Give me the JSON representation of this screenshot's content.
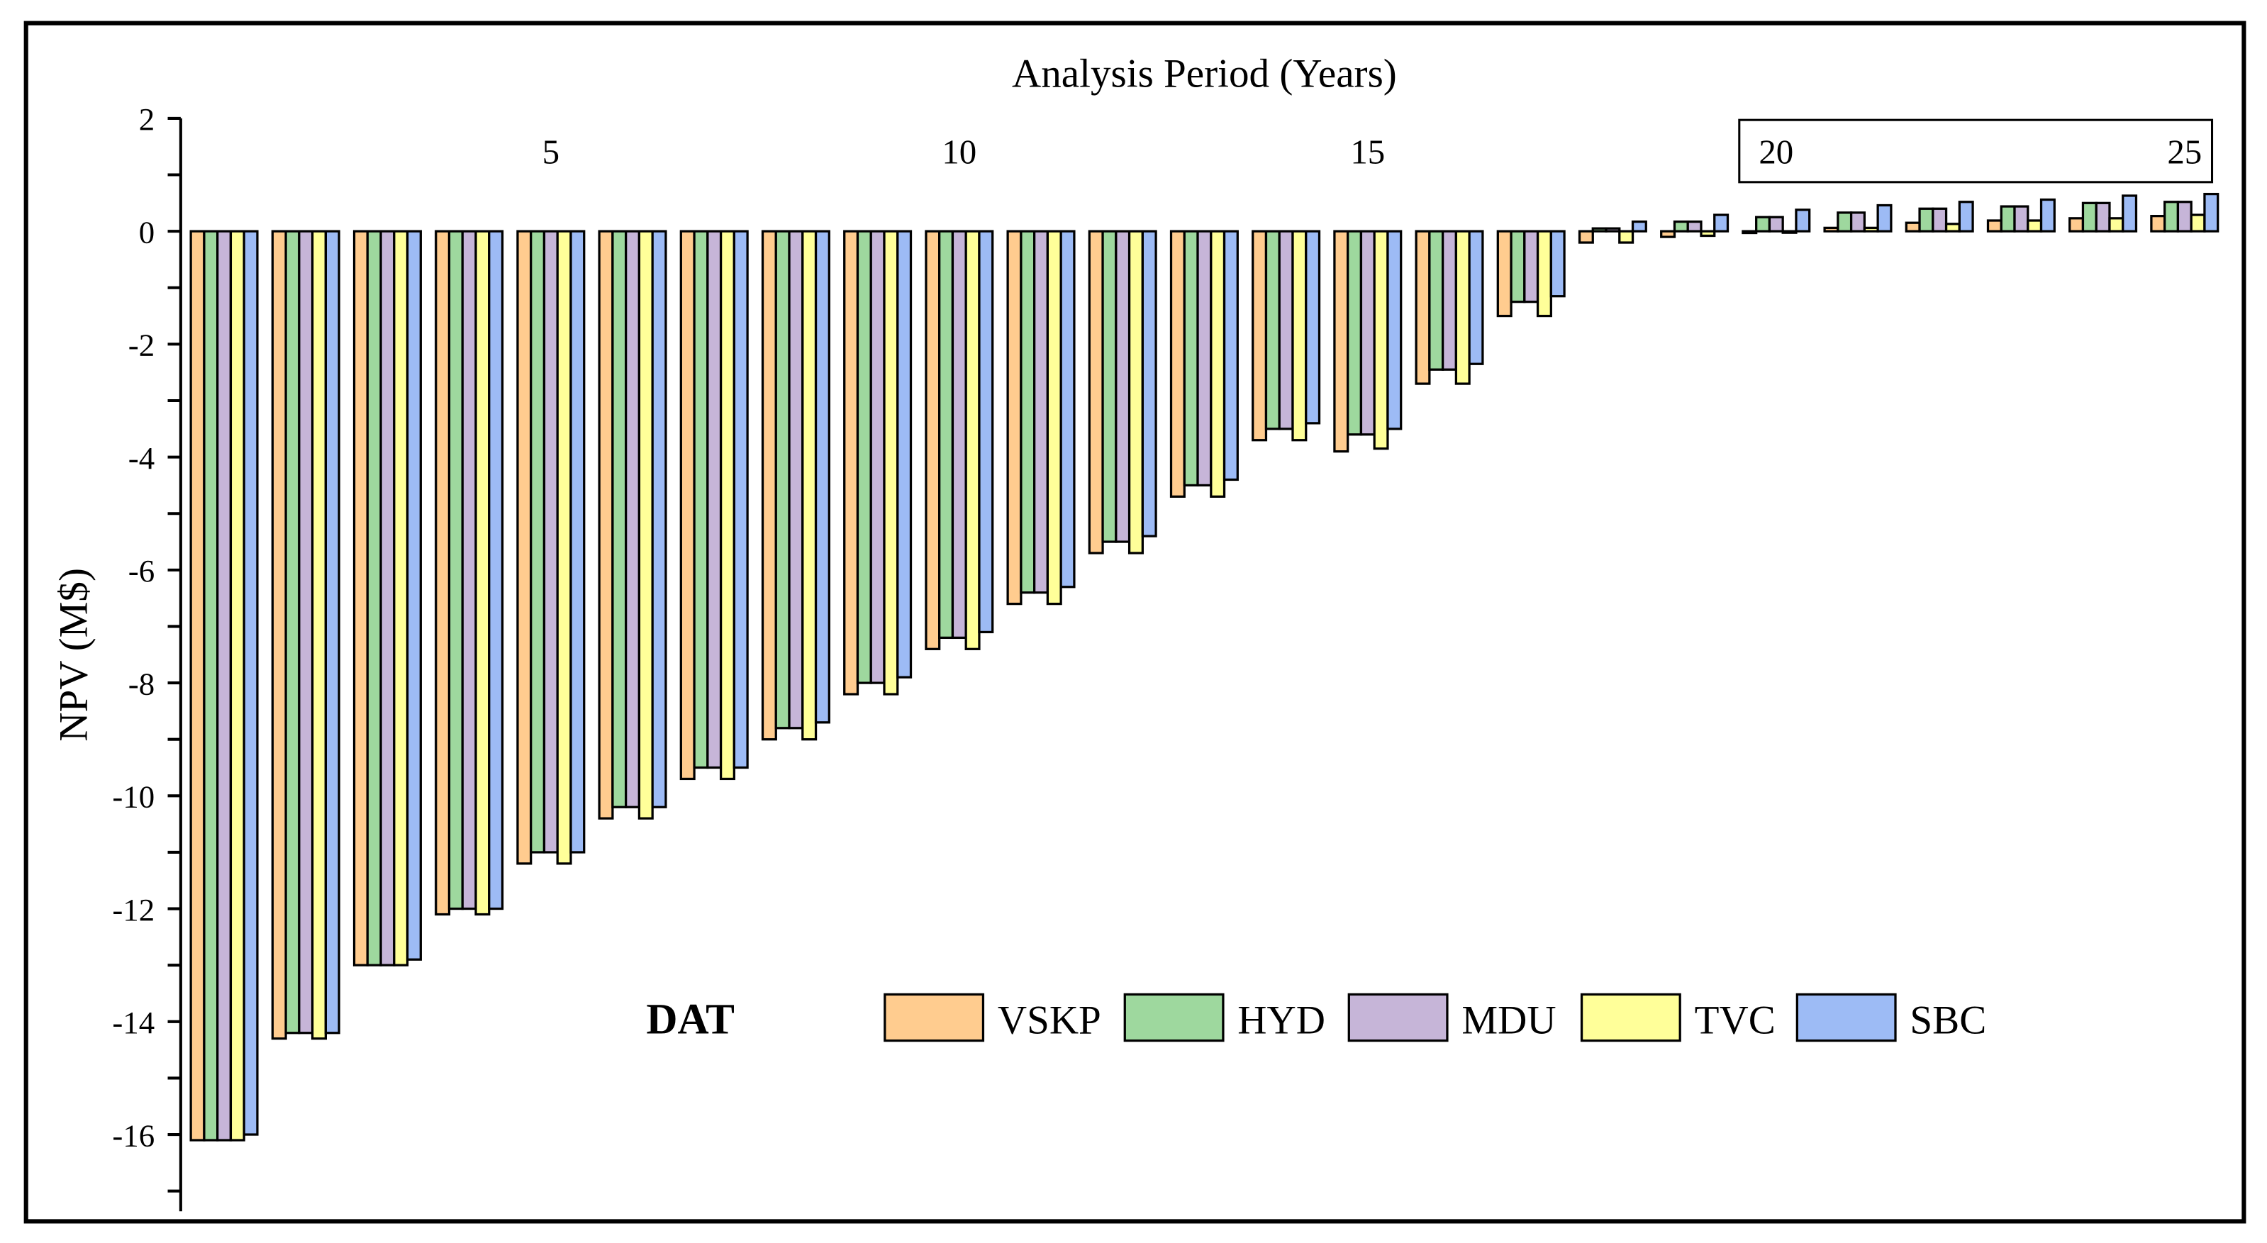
{
  "chart_data": {
    "type": "bar",
    "title": "",
    "xlabel": "Analysis Period (Years)",
    "ylabel": "NPV (M$)",
    "ylim": [
      -17,
      2
    ],
    "yticks": [
      2,
      0,
      -2,
      -4,
      -6,
      -8,
      -10,
      -12,
      -14,
      -16
    ],
    "xtick_labels": [
      "5",
      "10",
      "15",
      "20",
      "25"
    ],
    "xticks": [
      5,
      10,
      15,
      20,
      25
    ],
    "categories": [
      1,
      2,
      3,
      4,
      5,
      6,
      7,
      8,
      9,
      10,
      11,
      12,
      13,
      14,
      15,
      16,
      17,
      18,
      19,
      20,
      21,
      22,
      23,
      24,
      25
    ],
    "legend": {
      "title": "DAT",
      "placement": "bottom-center"
    },
    "grid": false,
    "series": [
      {
        "name": "VSKP",
        "color": "#FFCC8F",
        "values": [
          -16.1,
          -14.3,
          -13.0,
          -12.1,
          -11.2,
          -10.4,
          -9.7,
          -9.0,
          -8.2,
          -7.4,
          -6.6,
          -5.7,
          -4.7,
          -3.7,
          -3.9,
          -2.7,
          -1.5,
          -0.2,
          -0.1,
          -0.03,
          0.06,
          0.15,
          0.19,
          0.23,
          0.27
        ]
      },
      {
        "name": "HYD",
        "color": "#9ED89E",
        "values": [
          -16.1,
          -14.2,
          -13.0,
          -12.0,
          -11.0,
          -10.2,
          -9.5,
          -8.8,
          -8.0,
          -7.2,
          -6.4,
          -5.5,
          -4.5,
          -3.5,
          -3.6,
          -2.45,
          -1.25,
          0.05,
          0.17,
          0.25,
          0.33,
          0.4,
          0.44,
          0.5,
          0.52
        ]
      },
      {
        "name": "MDU",
        "color": "#C6B5D8",
        "values": [
          -16.1,
          -14.2,
          -13.0,
          -12.0,
          -11.0,
          -10.2,
          -9.5,
          -8.8,
          -8.0,
          -7.2,
          -6.4,
          -5.5,
          -4.5,
          -3.5,
          -3.6,
          -2.45,
          -1.25,
          0.05,
          0.17,
          0.25,
          0.33,
          0.4,
          0.44,
          0.5,
          0.52
        ]
      },
      {
        "name": "TVC",
        "color": "#FFFF99",
        "values": [
          -16.1,
          -14.3,
          -13.0,
          -12.1,
          -11.2,
          -10.4,
          -9.7,
          -9.0,
          -8.2,
          -7.4,
          -6.6,
          -5.7,
          -4.7,
          -3.7,
          -3.85,
          -2.7,
          -1.5,
          -0.2,
          -0.08,
          0.0,
          0.06,
          0.13,
          0.19,
          0.23,
          0.29
        ]
      },
      {
        "name": "SBC",
        "color": "#9DBBF5",
        "values": [
          -16.0,
          -14.2,
          -12.9,
          -12.0,
          -11.0,
          -10.2,
          -9.5,
          -8.7,
          -7.9,
          -7.1,
          -6.3,
          -5.4,
          -4.4,
          -3.4,
          -3.5,
          -2.35,
          -1.15,
          0.17,
          0.29,
          0.38,
          0.46,
          0.52,
          0.56,
          0.63,
          0.66
        ]
      }
    ]
  }
}
